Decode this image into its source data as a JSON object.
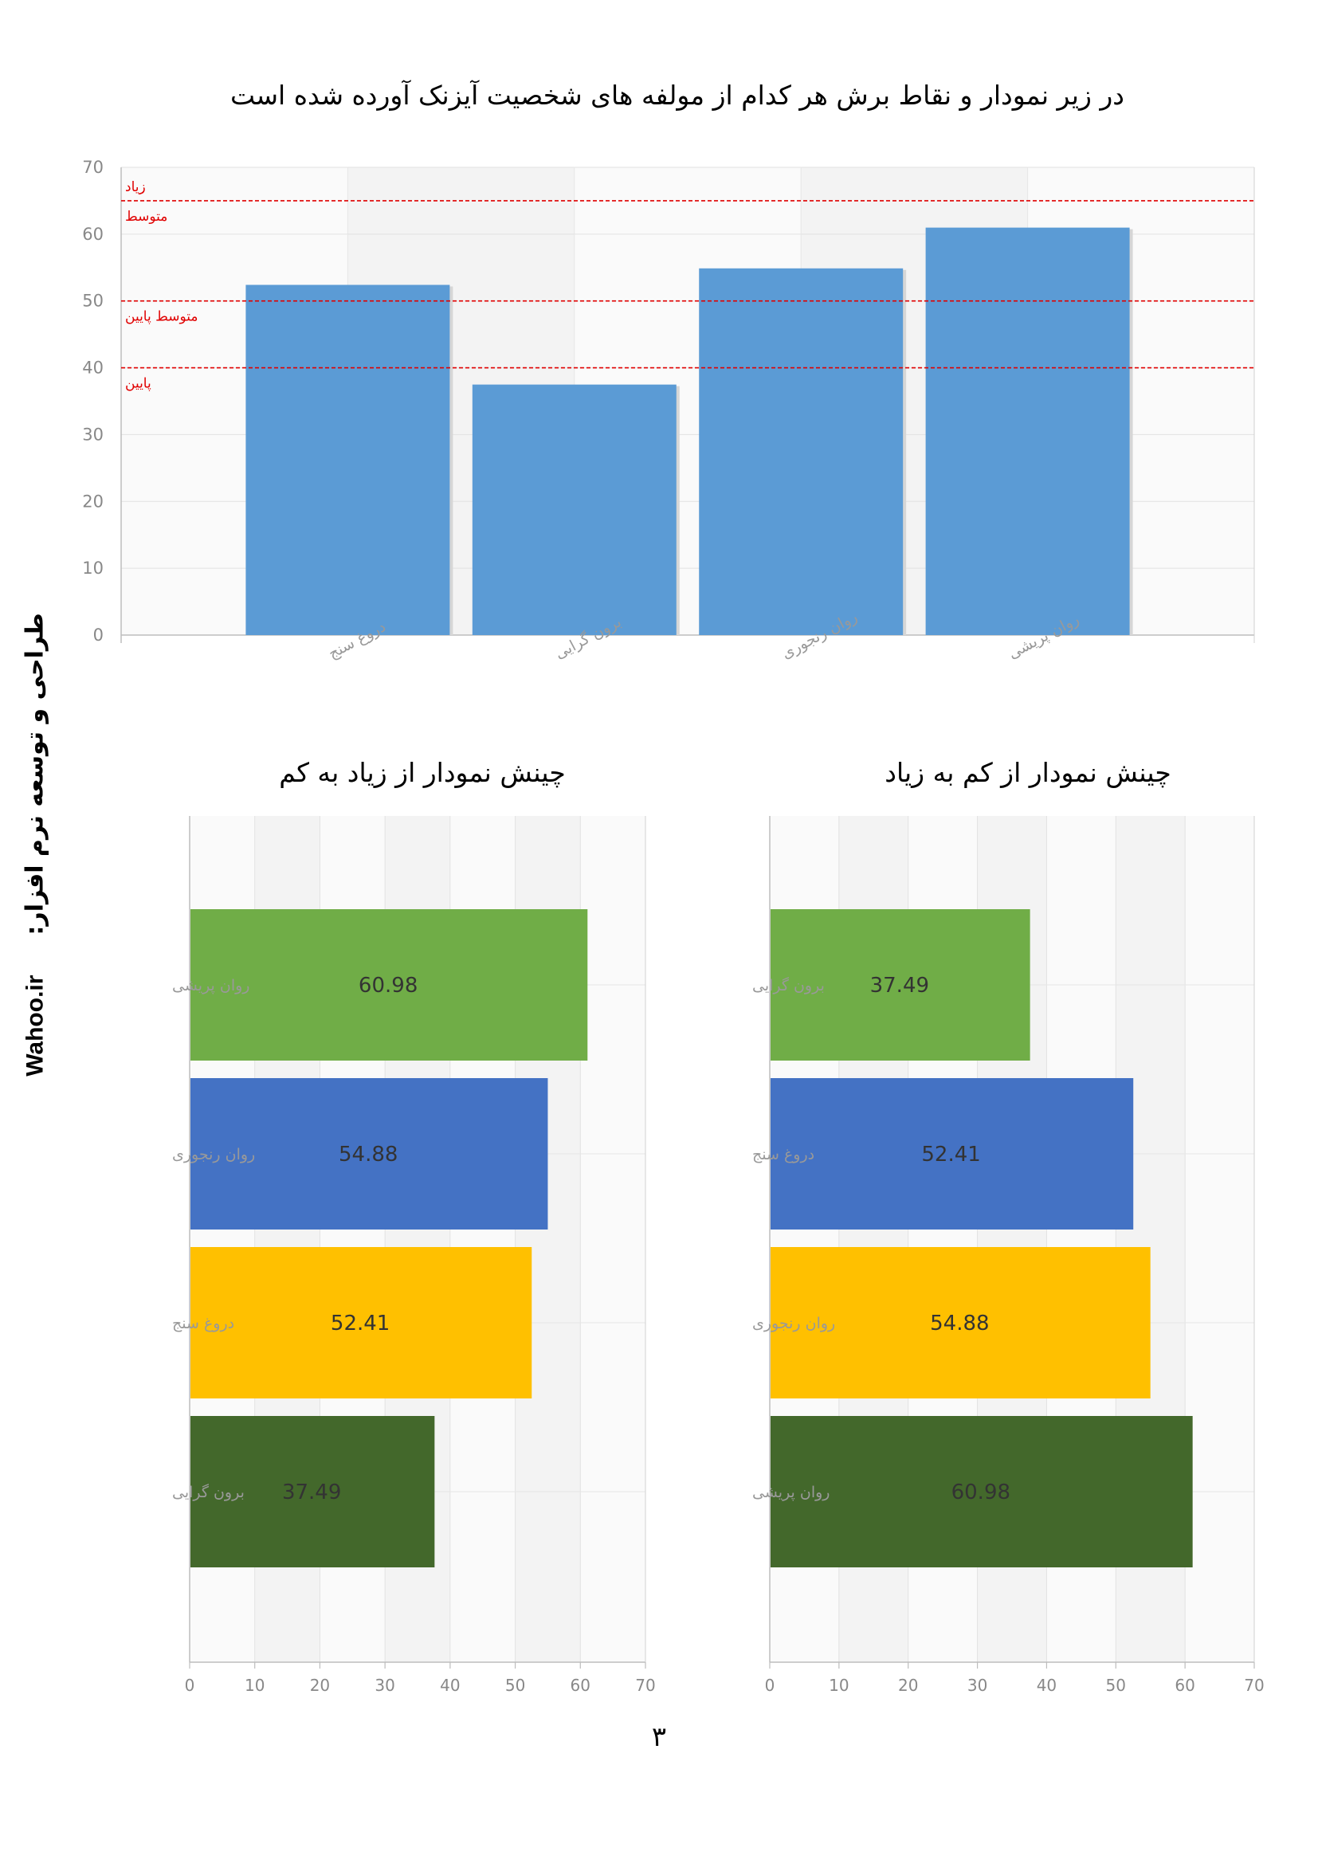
{
  "page": {
    "title": "در زیر نمودار و نقاط برش هر کدام از مولفه های شخصیت آیزنک آورده شده است",
    "side_text_brand": "Wahoo.ir",
    "side_text_fa": "طراحی و توسعه نرم افزار:",
    "page_number": "۳"
  },
  "chart_data": [
    {
      "type": "bar",
      "title": "",
      "categories": [
        "دروغ سنج",
        "برون گرایی",
        "روان رنجوری",
        "روان پریشی"
      ],
      "values": [
        52.41,
        37.49,
        54.88,
        60.98
      ],
      "color": "#5b9bd5",
      "ylim": [
        0,
        70
      ],
      "yticks": [
        0,
        10,
        20,
        30,
        40,
        50,
        60,
        70
      ],
      "threshold_lines": [
        {
          "value": 65,
          "label_above": "زیاد",
          "label_below": "متوسط",
          "color": "#e00000"
        },
        {
          "value": 50,
          "label_below": "متوسط پایین",
          "color": "#e00000"
        },
        {
          "value": 40,
          "label_below": "پایین",
          "color": "#e00000"
        }
      ],
      "grid": true
    },
    {
      "type": "bar",
      "orientation": "horizontal",
      "title": "چینش نمودار از زیاد به کم",
      "categories": [
        "روان پریشی",
        "روان رنجوری",
        "دروغ سنج",
        "برون گرایی"
      ],
      "values": [
        60.98,
        54.88,
        52.41,
        37.49
      ],
      "value_labels": [
        "60.98",
        "54.88",
        "52.41",
        "37.49"
      ],
      "colors": [
        "#70ad47",
        "#4472c4",
        "#ffc000",
        "#43682b"
      ],
      "xlim": [
        0,
        70
      ],
      "xticks": [
        0,
        10,
        20,
        30,
        40,
        50,
        60,
        70
      ],
      "grid": true
    },
    {
      "type": "bar",
      "orientation": "horizontal",
      "title": "چینش نمودار از کم به زیاد",
      "categories": [
        "برون گرایی",
        "دروغ سنج",
        "روان رنجوری",
        "روان پریشی"
      ],
      "values": [
        37.49,
        52.41,
        54.88,
        60.98
      ],
      "value_labels": [
        "37.49",
        "52.41",
        "54.88",
        "60.98"
      ],
      "colors": [
        "#70ad47",
        "#4472c4",
        "#ffc000",
        "#43682b"
      ],
      "xlim": [
        0,
        70
      ],
      "xticks": [
        0,
        10,
        20,
        30,
        40,
        50,
        60,
        70
      ],
      "grid": true
    }
  ]
}
